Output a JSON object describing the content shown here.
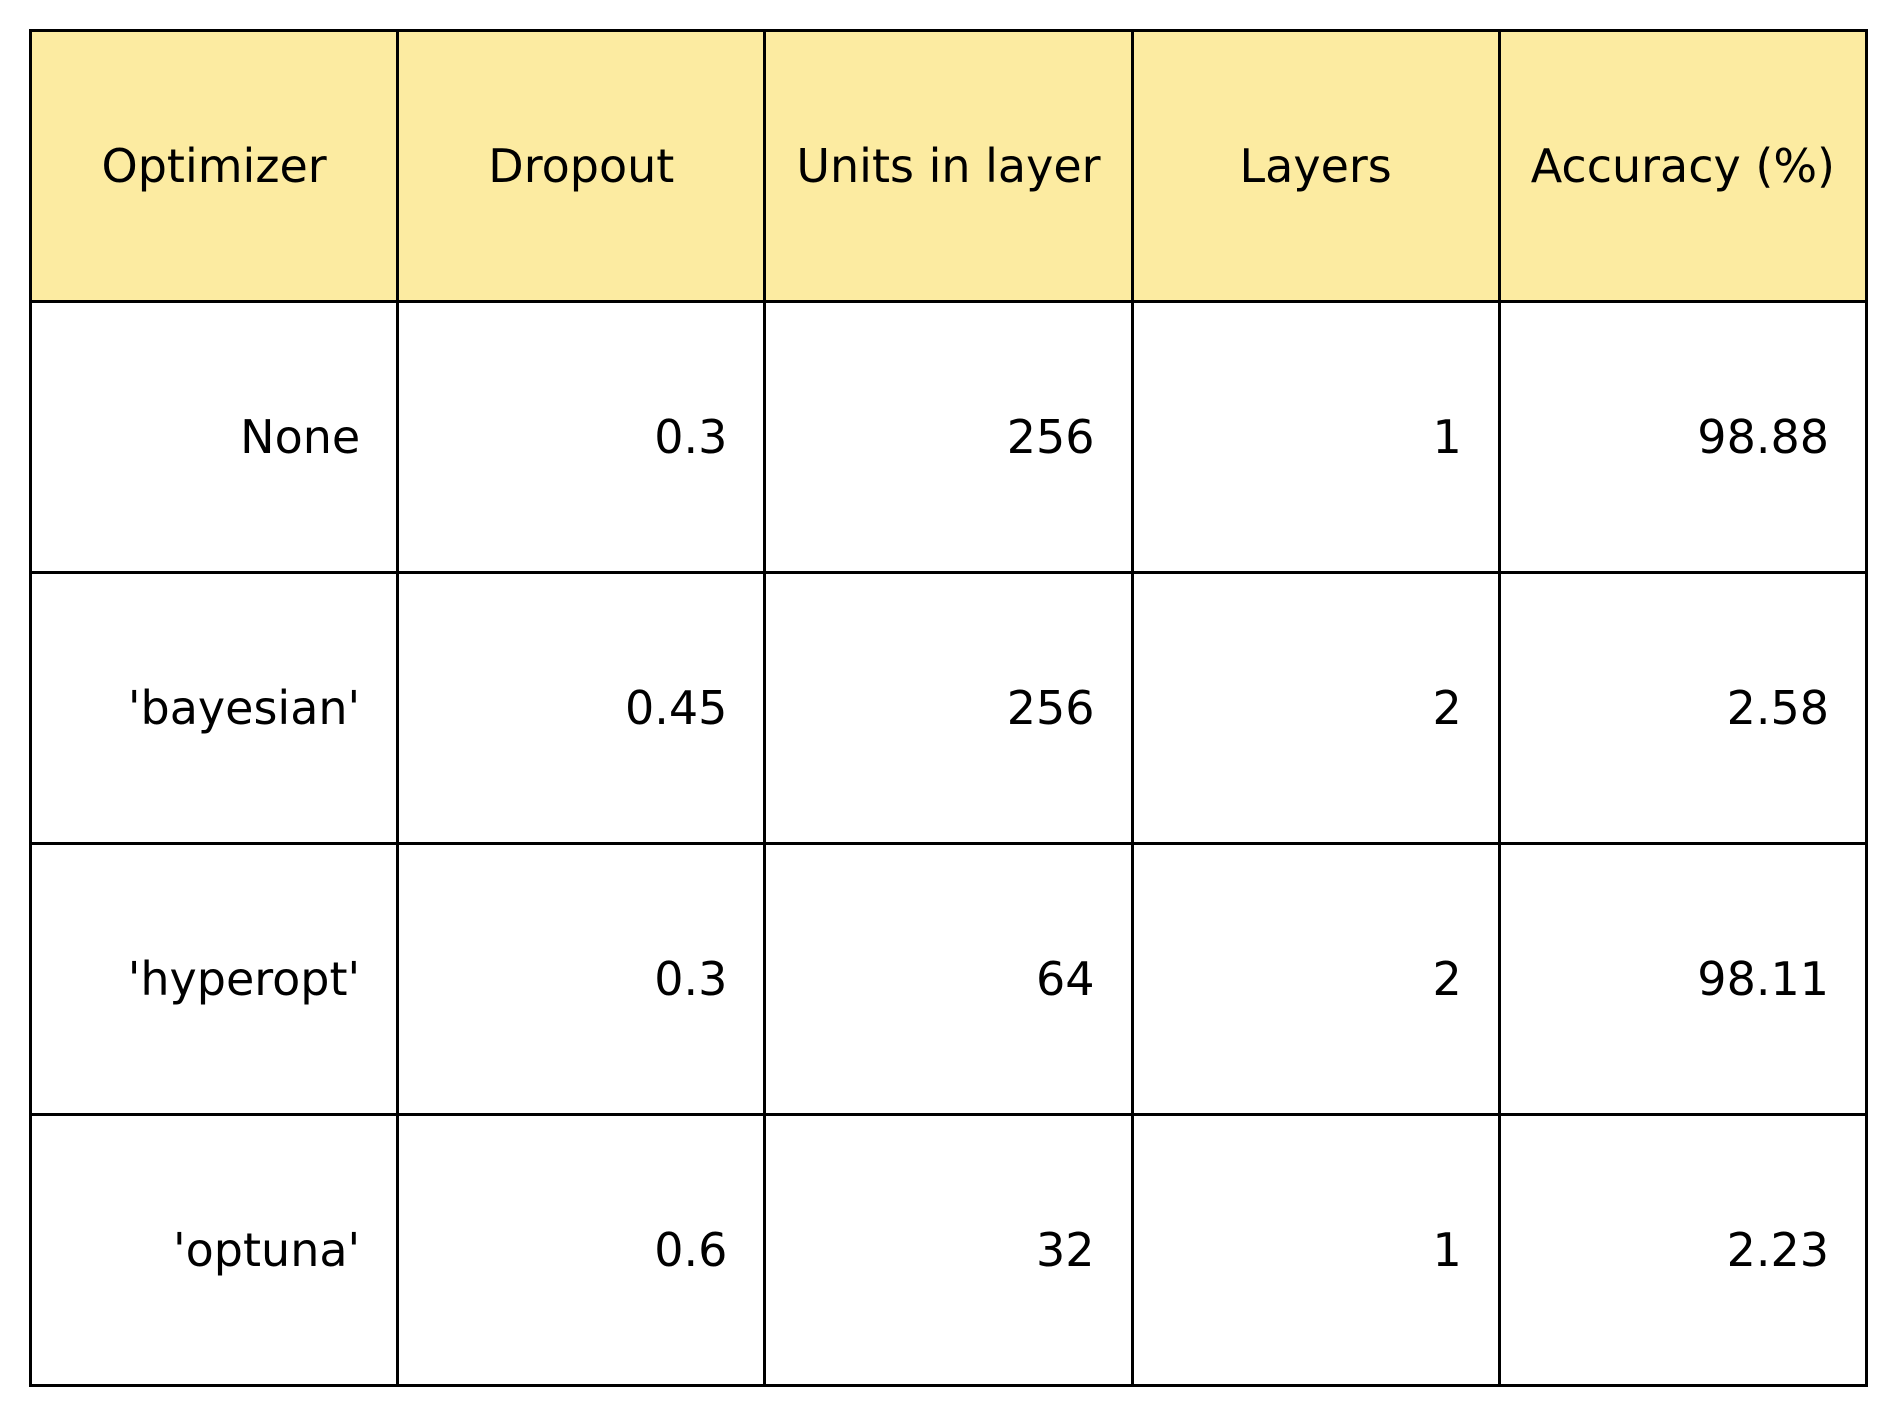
{
  "chart_data": {
    "type": "table",
    "header_color": "#fceba1",
    "body_color": "#ffffff",
    "columns": [
      "Optimizer",
      "Dropout",
      "Units in layer",
      "Layers",
      "Accuracy (%)"
    ],
    "rows": [
      [
        "None",
        "0.3",
        "256",
        "1",
        "98.88"
      ],
      [
        "'bayesian'",
        "0.45",
        "256",
        "2",
        "2.58"
      ],
      [
        "'hyperopt'",
        "0.3",
        "64",
        "2",
        "98.11"
      ],
      [
        "'optuna'",
        "0.6",
        "32",
        "1",
        "2.23"
      ]
    ]
  }
}
